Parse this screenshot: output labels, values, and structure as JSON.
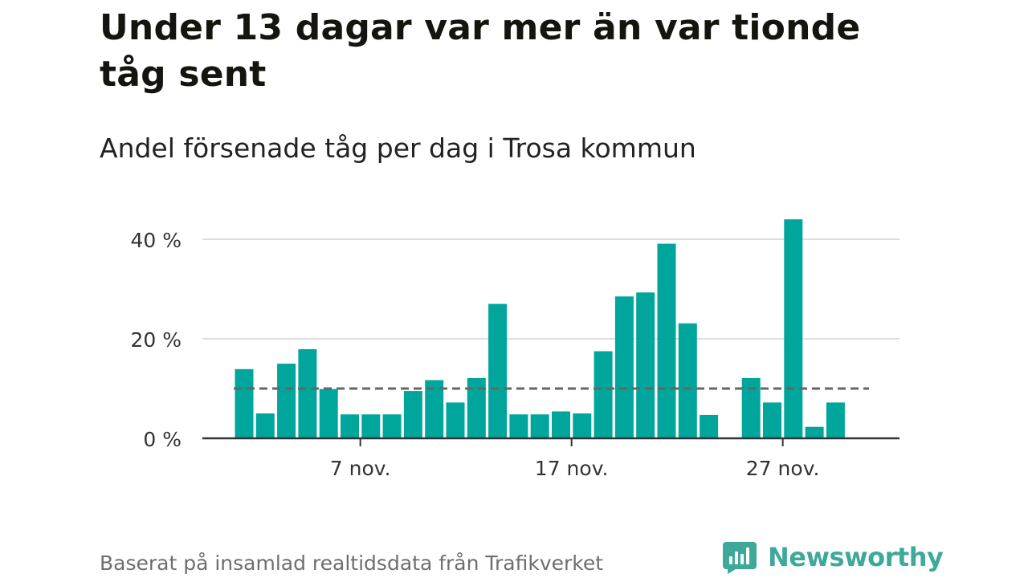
{
  "header": {
    "title": "Under 13 dagar var mer än var tionde tåg sent",
    "subtitle": "Andel försenade tåg per dag i Trosa kommun"
  },
  "footer": {
    "source": "Baserat på insamlad realtidsdata från Trafikverket",
    "brand": "Newsworthy"
  },
  "colors": {
    "bar": "#00a69c",
    "reference_line": "#666666",
    "grid": "#dddddd",
    "axis": "#333333",
    "brand": "#3ea99a"
  },
  "chart_data": {
    "type": "bar",
    "x": [
      1,
      2,
      3,
      4,
      5,
      6,
      7,
      8,
      9,
      10,
      11,
      12,
      13,
      14,
      15,
      16,
      17,
      18,
      19,
      20,
      21,
      22,
      23,
      24,
      25,
      26,
      27,
      28,
      29,
      30
    ],
    "values": [
      13.9,
      5.0,
      15.0,
      17.9,
      9.9,
      4.8,
      4.8,
      4.8,
      9.5,
      11.7,
      7.2,
      12.1,
      27.0,
      4.8,
      4.8,
      5.4,
      5.0,
      17.5,
      28.5,
      29.3,
      39.1,
      23.1,
      4.7,
      null,
      12.1,
      7.2,
      44.0,
      2.3,
      7.2,
      null
    ],
    "x_unit": "nov.",
    "xticks": [
      7,
      17,
      27
    ],
    "xtick_labels": [
      "7 nov.",
      "17 nov.",
      "27 nov."
    ],
    "yticks": [
      0,
      20,
      40
    ],
    "ytick_labels": [
      "0 %",
      "20 %",
      "40 %"
    ],
    "ylim": [
      0,
      44
    ],
    "reference_line": {
      "value": 10,
      "style": "dashed"
    },
    "grid": true,
    "legend": "none",
    "xlabel": "",
    "ylabel": ""
  }
}
